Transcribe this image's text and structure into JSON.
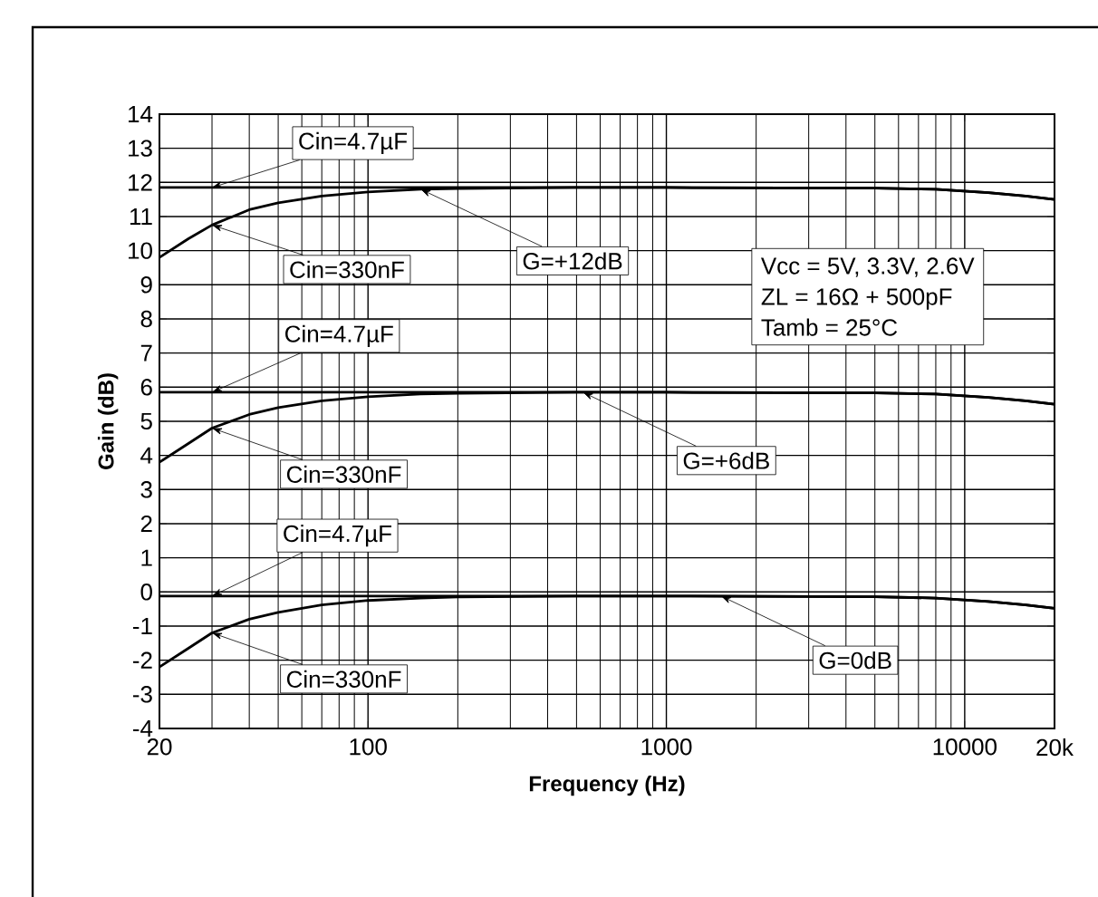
{
  "chart_data": {
    "type": "line",
    "xlabel": "Frequency (Hz)",
    "ylabel": "Gain (dB)",
    "log": "x",
    "grid": true,
    "xlim": [
      20,
      20000
    ],
    "ylim": [
      -4,
      14
    ],
    "xticks": [
      20,
      100,
      1000,
      10000,
      {
        "value": 20000,
        "label": "20k"
      }
    ],
    "yticks": [
      -4,
      -3,
      -2,
      -1,
      0,
      1,
      2,
      3,
      4,
      5,
      6,
      7,
      8,
      9,
      10,
      11,
      12,
      13,
      14
    ],
    "series": [
      {
        "color": "#000000",
        "x": [
          20,
          100,
          1000,
          5000,
          8000,
          12000,
          16000,
          20000
        ],
        "values": [
          11.85,
          11.85,
          11.85,
          11.83,
          11.8,
          11.7,
          11.6,
          11.5
        ]
      },
      {
        "color": "#000000",
        "x": [
          20,
          25,
          30,
          40,
          50,
          70,
          100,
          150,
          200,
          500,
          1000,
          5000,
          8000,
          12000,
          16000,
          20000
        ],
        "values": [
          9.8,
          10.35,
          10.75,
          11.2,
          11.4,
          11.6,
          11.72,
          11.8,
          11.82,
          11.85,
          11.85,
          11.83,
          11.8,
          11.7,
          11.6,
          11.5
        ]
      },
      {
        "color": "#000000",
        "x": [
          20,
          100,
          1000,
          5000,
          8000,
          12000,
          16000,
          20000
        ],
        "values": [
          5.85,
          5.85,
          5.85,
          5.83,
          5.8,
          5.7,
          5.6,
          5.5
        ]
      },
      {
        "color": "#000000",
        "x": [
          20,
          25,
          30,
          40,
          50,
          70,
          100,
          150,
          200,
          500,
          1000,
          5000,
          8000,
          12000,
          16000,
          20000
        ],
        "values": [
          3.8,
          4.35,
          4.8,
          5.2,
          5.4,
          5.6,
          5.72,
          5.8,
          5.82,
          5.85,
          5.85,
          5.83,
          5.8,
          5.7,
          5.6,
          5.5
        ]
      },
      {
        "color": "#000000",
        "x": [
          20,
          100,
          1000,
          5000,
          8000,
          12000,
          16000,
          20000
        ],
        "values": [
          -0.12,
          -0.12,
          -0.12,
          -0.14,
          -0.18,
          -0.28,
          -0.38,
          -0.48
        ]
      },
      {
        "color": "#000000",
        "x": [
          20,
          25,
          30,
          40,
          50,
          70,
          100,
          150,
          200,
          500,
          1000,
          5000,
          8000,
          12000,
          16000,
          20000
        ],
        "values": [
          -2.2,
          -1.65,
          -1.2,
          -0.8,
          -0.6,
          -0.38,
          -0.25,
          -0.18,
          -0.15,
          -0.12,
          -0.12,
          -0.14,
          -0.18,
          -0.28,
          -0.38,
          -0.48
        ]
      }
    ],
    "annotations": [
      {
        "text": "Cin=4.7µF",
        "x": 30,
        "y": 11.85
      },
      {
        "text": "Cin=330nF",
        "x": 30,
        "y": 10.75
      },
      {
        "text": "G=+12dB",
        "x": 150,
        "y": 11.8
      },
      {
        "text": "Cin=4.7µF",
        "x": 30,
        "y": 5.85
      },
      {
        "text": "Cin=330nF",
        "x": 30,
        "y": 4.8
      },
      {
        "text": "G=+6dB",
        "x": 525,
        "y": 5.85
      },
      {
        "text": "Cin=4.7µF",
        "x": 30,
        "y": -0.12
      },
      {
        "text": "Cin=330nF",
        "x": 30,
        "y": -1.2
      },
      {
        "text": "G=0dB",
        "x": 1525,
        "y": -0.12
      },
      "Vcc = 5V, 3.3V, 2.6V",
      "ZL = 16Ω + 500pF",
      "Tamb = 25°C"
    ]
  }
}
